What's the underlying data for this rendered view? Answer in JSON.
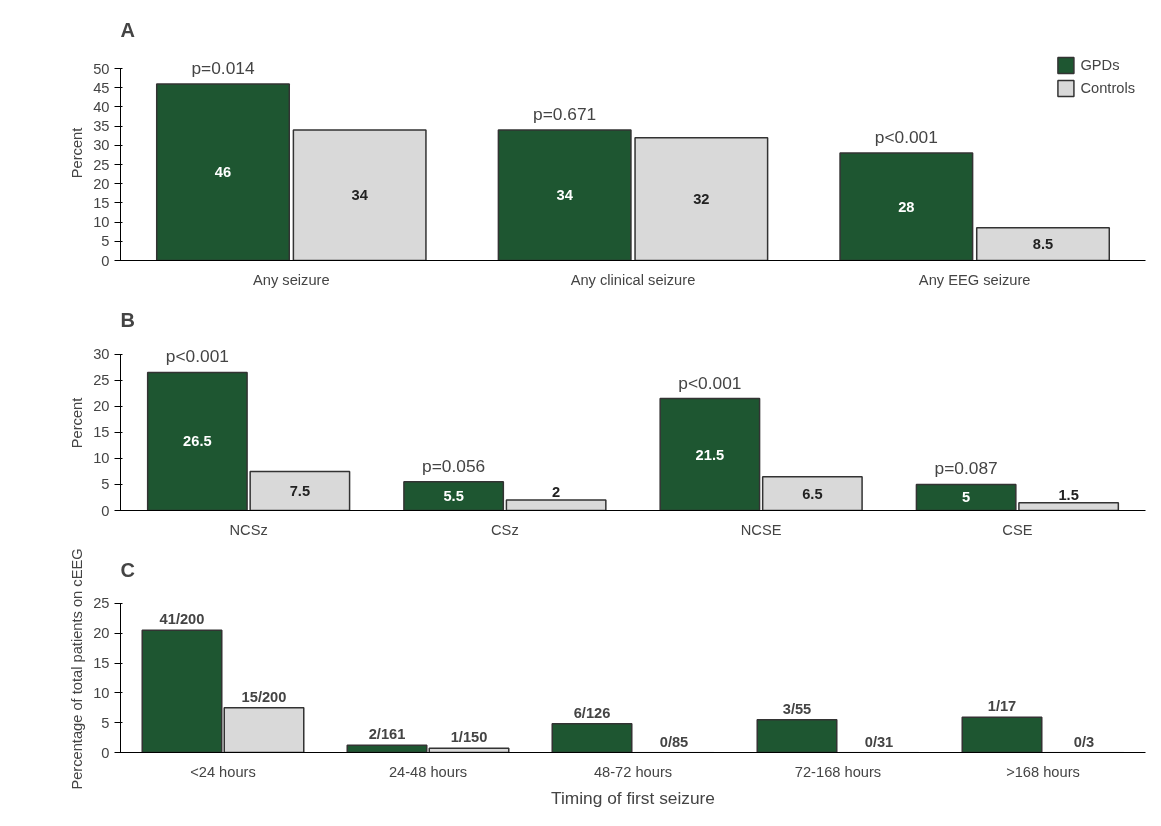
{
  "chart_data": [
    {
      "type": "bar",
      "title": "A",
      "ylabel": "Percent",
      "categories": [
        "Any seizure",
        "Any clinical seizure",
        "Any EEG seizure"
      ],
      "series": [
        {
          "name": "GPDs",
          "color": "#1e5631",
          "values": [
            46,
            34,
            28
          ]
        },
        {
          "name": "Controls",
          "color": "#d9d9d9",
          "values": [
            34,
            32,
            8.5
          ]
        }
      ],
      "ylim": [
        0,
        50
      ],
      "yticks": [
        0,
        5,
        10,
        15,
        20,
        25,
        30,
        35,
        40,
        45,
        50
      ],
      "data_labels": true,
      "legend": "top right",
      "grid": false,
      "annotations": [
        {
          "text": "p=0.014",
          "x": "Any seizure",
          "y": 46
        },
        {
          "text": "p=0.671",
          "x": "Any clinical seizure",
          "y": 34
        },
        {
          "text": "p<0.001",
          "x": "Any EEG seizure",
          "y": 28
        }
      ]
    },
    {
      "type": "bar",
      "title": "B",
      "ylabel": "Percent",
      "categories": [
        "NCSz",
        "CSz",
        "NCSE",
        "CSE"
      ],
      "series": [
        {
          "color": "#1e5631",
          "values": [
            26.5,
            5.5,
            21.5,
            5
          ]
        },
        {
          "color": "#d9d9d9",
          "values": [
            7.5,
            2,
            6.5,
            1.5
          ]
        }
      ],
      "ylim": [
        0,
        30
      ],
      "yticks": [
        0,
        5,
        10,
        15,
        20,
        25,
        30
      ],
      "data_labels": true,
      "grid": false,
      "annotations": [
        {
          "text": "p<0.001",
          "x": "NCSz",
          "y": 26.5
        },
        {
          "text": "p=0.056",
          "x": "CSz",
          "y": 5.5
        },
        {
          "text": "p<0.001",
          "x": "NCSE",
          "y": 21.5
        },
        {
          "text": "p=0.087",
          "x": "CSE",
          "y": 5
        }
      ]
    },
    {
      "type": "bar",
      "title": "C",
      "ylabel": "Percentage of total patients on cEEG",
      "xlabel": "Timing of first seizure",
      "categories": [
        "<24 hours",
        "24-48 hours",
        "48-72 hours",
        "72-168 hours",
        ">168 hours"
      ],
      "series": [
        {
          "color": "#1e5631",
          "values": [
            20.5,
            1.2,
            4.8,
            5.5,
            5.9
          ],
          "value_labels": [
            "41/200",
            "2/161",
            "6/126",
            "3/55",
            "1/17"
          ]
        },
        {
          "color": "#d9d9d9",
          "values": [
            7.5,
            0.7,
            0,
            0,
            0
          ],
          "value_labels": [
            "15/200",
            "1/150",
            "0/85",
            "0/31",
            "0/3"
          ]
        }
      ],
      "ylim": [
        0,
        25
      ],
      "yticks": [
        0,
        5,
        10,
        15,
        20,
        25
      ],
      "grid": false
    }
  ]
}
